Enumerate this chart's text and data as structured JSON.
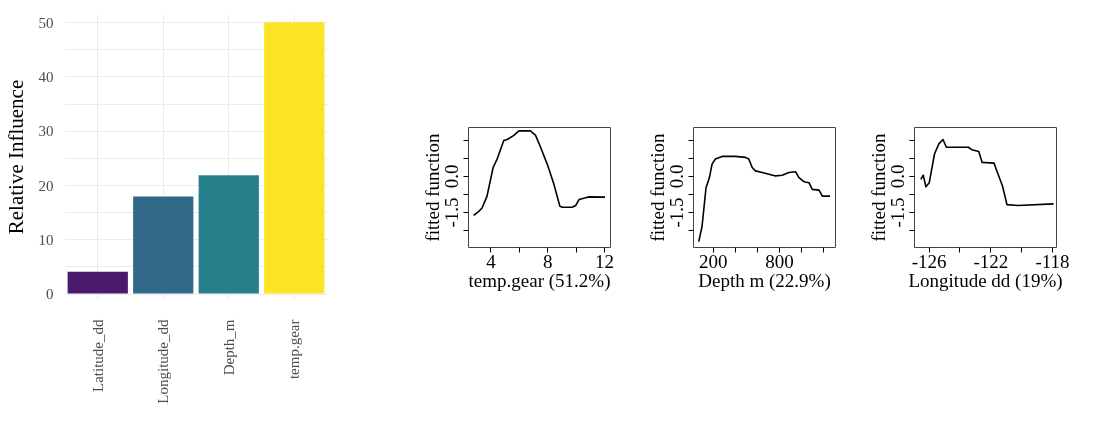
{
  "chart_data": [
    {
      "type": "bar",
      "ylabel": "Relative Influence",
      "categories": [
        "Latitude_dd",
        "Longitude_dd",
        "Depth_m",
        "temp.gear"
      ],
      "values": [
        4.0,
        17.9,
        21.8,
        50.0
      ],
      "colors": [
        "#4a1a6c",
        "#30698a",
        "#26808c",
        "#fbe424"
      ],
      "ylim": [
        -1,
        51.5
      ],
      "yticks": [
        0,
        {
          "value": 5,
          "label": null
        },
        10,
        {
          "value": 15,
          "label": null
        },
        20,
        {
          "value": 25,
          "label": null
        },
        30,
        {
          "value": 35,
          "label": null
        },
        40,
        {
          "value": 45,
          "label": null
        },
        50
      ],
      "grid": true
    },
    {
      "type": "line",
      "xlabel": "temp.gear (51.2%)",
      "ylabel": "fitted function",
      "xlim": [
        2.42,
        12.42
      ],
      "xticks": [
        4,
        {
          "value": 6,
          "label": null
        },
        8,
        {
          "value": 10,
          "label": null
        },
        12
      ],
      "ylim": [
        -2.95,
        2.03
      ],
      "yticks": [
        {
          "value": -2.25,
          "label": null
        },
        -1.5,
        {
          "value": -0.75,
          "label": null
        },
        {
          "value": 0,
          "label": "0.0"
        },
        {
          "value": 0.75,
          "label": null
        },
        {
          "value": 1.5,
          "label": null
        }
      ],
      "grid": false,
      "series": [
        {
          "color": "#000000",
          "x": [
            2.82,
            3.18,
            3.41,
            3.76,
            4.19,
            4.47,
            4.94,
            5.18,
            5.65,
            6.0,
            6.82,
            7.18,
            7.53,
            8.0,
            8.47,
            8.89,
            9.06,
            9.76,
            10.0,
            10.24,
            10.71,
            10.94,
            12.07
          ],
          "values": [
            -1.64,
            -1.47,
            -1.33,
            -0.84,
            0.35,
            0.7,
            1.47,
            1.51,
            1.68,
            1.87,
            1.87,
            1.68,
            1.19,
            0.49,
            -0.35,
            -1.26,
            -1.3,
            -1.3,
            -1.23,
            -0.98,
            -0.91,
            -0.87,
            -0.88
          ]
        }
      ]
    },
    {
      "type": "line",
      "xlabel": "Depth m (22.9%)",
      "ylabel": "fitted function",
      "xlim": [
        21,
        1309
      ],
      "xticks": [
        200,
        {
          "value": 400,
          "label": null
        },
        {
          "value": 600,
          "label": null
        },
        800,
        {
          "value": 1000,
          "label": null
        },
        {
          "value": 1200,
          "label": null
        }
      ],
      "ylim": [
        -2.95,
        2.03
      ],
      "yticks": [
        {
          "value": -2.25,
          "label": null
        },
        -1.5,
        {
          "value": -0.75,
          "label": null
        },
        {
          "value": 0,
          "label": "0.0"
        },
        {
          "value": 0.75,
          "label": null
        },
        {
          "value": 1.5,
          "label": null
        }
      ],
      "grid": false,
      "series": [
        {
          "color": "#000000",
          "x": [
            73,
            103,
            139,
            170,
            194,
            224,
            285,
            406,
            497,
            527,
            558,
            588,
            649,
            770,
            830,
            891,
            952,
            982,
            1027,
            1073,
            1103,
            1164,
            1194,
            1264
          ],
          "values": [
            -2.73,
            -2.1,
            -0.49,
            -0.07,
            0.49,
            0.7,
            0.81,
            0.81,
            0.77,
            0.7,
            0.35,
            0.21,
            0.14,
            0.0,
            0.03,
            0.14,
            0.17,
            -0.07,
            -0.24,
            -0.28,
            -0.56,
            -0.59,
            -0.84,
            -0.84
          ]
        }
      ]
    },
    {
      "type": "line",
      "xlabel": "Longitude dd (19%)",
      "ylabel": "fitted function",
      "xlim": [
        -126.95,
        -117.74
      ],
      "xticks": [
        -126,
        {
          "value": -124,
          "label": null
        },
        -122,
        {
          "value": -120,
          "label": null
        },
        -118
      ],
      "ylim": [
        -2.95,
        2.03
      ],
      "yticks": [
        {
          "value": -2.25,
          "label": null
        },
        -1.5,
        {
          "value": -0.75,
          "label": null
        },
        {
          "value": 0,
          "label": "0.0"
        },
        {
          "value": 0.75,
          "label": null
        },
        {
          "value": 1.5,
          "label": null
        }
      ],
      "grid": false,
      "series": [
        {
          "color": "#000000",
          "x": [
            -126.51,
            -126.35,
            -126.18,
            -125.96,
            -125.62,
            -125.34,
            -125.07,
            -124.85,
            -124.41,
            -123.42,
            -123.2,
            -122.75,
            -122.53,
            -121.76,
            -121.54,
            -121.21,
            -120.92,
            -120.22,
            -117.9
          ],
          "values": [
            -0.14,
            0.03,
            -0.45,
            -0.28,
            0.91,
            1.33,
            1.51,
            1.19,
            1.19,
            1.19,
            1.09,
            1.01,
            0.56,
            0.53,
            0.14,
            -0.42,
            -1.19,
            -1.23,
            -1.16
          ]
        }
      ]
    }
  ]
}
